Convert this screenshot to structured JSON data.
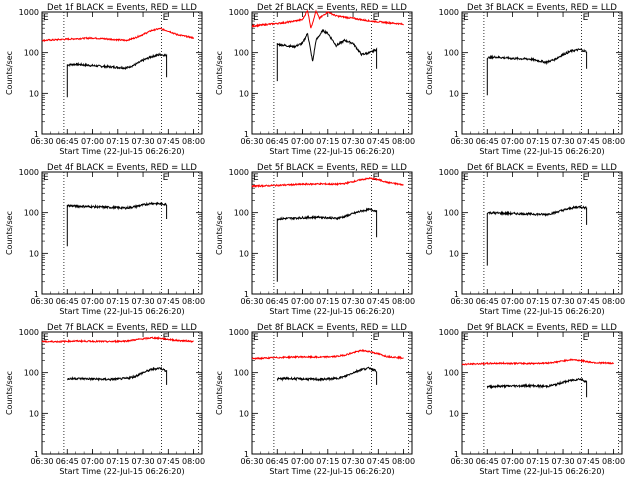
{
  "page": {
    "ylabel": "Counts/sec",
    "xlabel": "Start Time (22-Jul-15 06:26:20)",
    "xticks": [
      "06:30",
      "06:45",
      "07:00",
      "07:15",
      "07:30",
      "07:45",
      "08:00"
    ],
    "yticks": [
      "1",
      "10",
      "100",
      "1000"
    ],
    "marker_left": "E",
    "marker_right": "E"
  },
  "colors": {
    "events": "#000000",
    "lld": "#ff0000",
    "axis": "#000000"
  },
  "chart_data": [
    {
      "type": "line",
      "title": "Det 1f BLACK = Events, RED = LLD",
      "xlabel": "Start Time (22-Jul-15 06:26:20)",
      "ylabel": "Counts/sec",
      "ylog": true,
      "ylim": [
        1,
        1000
      ],
      "xlim": [
        "06:30",
        "08:05"
      ],
      "series": [
        {
          "name": "Events",
          "color": "#000000",
          "x": [
            "06:45",
            "06:50",
            "07:00",
            "07:10",
            "07:20",
            "07:25",
            "07:30",
            "07:35",
            "07:40",
            "07:44"
          ],
          "y": [
            50,
            52,
            48,
            45,
            42,
            50,
            65,
            80,
            90,
            85
          ],
          "start_y": 8,
          "end_y": 25
        },
        {
          "name": "LLD",
          "color": "#ff0000",
          "x": [
            "06:30",
            "06:40",
            "06:50",
            "07:00",
            "07:10",
            "07:20",
            "07:25",
            "07:30",
            "07:35",
            "07:40",
            "07:45",
            "07:50",
            "08:00"
          ],
          "y": [
            200,
            210,
            220,
            230,
            215,
            200,
            230,
            280,
            350,
            390,
            340,
            280,
            230
          ]
        }
      ]
    },
    {
      "type": "line",
      "title": "Det 2f BLACK = Events, RED = LLD",
      "xlabel": "Start Time (22-Jul-15 06:26:20)",
      "ylabel": "Counts/sec",
      "ylog": true,
      "ylim": [
        1,
        1000
      ],
      "xlim": [
        "06:30",
        "08:05"
      ],
      "series": [
        {
          "name": "Events",
          "color": "#000000",
          "x": [
            "06:45",
            "06:50",
            "06:55",
            "07:00",
            "07:03",
            "07:06",
            "07:08",
            "07:12",
            "07:15",
            "07:20",
            "07:25",
            "07:30",
            "07:35",
            "07:40",
            "07:44"
          ],
          "y": [
            160,
            150,
            140,
            170,
            300,
            60,
            200,
            350,
            300,
            150,
            200,
            170,
            90,
            100,
            120
          ],
          "start_y": 20,
          "end_y": 40
        },
        {
          "name": "LLD",
          "color": "#ff0000",
          "x": [
            "06:30",
            "06:40",
            "06:50",
            "07:00",
            "07:03",
            "07:05",
            "07:08",
            "07:10",
            "07:15",
            "07:20",
            "07:30",
            "07:40",
            "07:50",
            "08:00"
          ],
          "y": [
            450,
            500,
            550,
            650,
            1100,
            400,
            1050,
            700,
            1000,
            800,
            700,
            600,
            550,
            500
          ]
        }
      ]
    },
    {
      "type": "line",
      "title": "Det 3f BLACK = Events, RED = LLD",
      "xlabel": "Start Time (22-Jul-15 06:26:20)",
      "ylabel": "Counts/sec",
      "ylog": true,
      "ylim": [
        1,
        1000
      ],
      "xlim": [
        "06:30",
        "08:05"
      ],
      "series": [
        {
          "name": "Events",
          "color": "#000000",
          "x": [
            "06:45",
            "06:50",
            "07:00",
            "07:10",
            "07:20",
            "07:25",
            "07:30",
            "07:35",
            "07:40",
            "07:44"
          ],
          "y": [
            75,
            78,
            72,
            70,
            58,
            68,
            90,
            110,
            120,
            105
          ],
          "start_y": 9,
          "end_y": 40
        }
      ]
    },
    {
      "type": "line",
      "title": "Det 4f BLACK = Events, RED = LLD",
      "xlabel": "Start Time (22-Jul-15 06:26:20)",
      "ylabel": "Counts/sec",
      "ylog": true,
      "ylim": [
        1,
        1000
      ],
      "xlim": [
        "06:30",
        "08:05"
      ],
      "series": [
        {
          "name": "Events",
          "color": "#000000",
          "x": [
            "06:45",
            "06:50",
            "07:00",
            "07:10",
            "07:20",
            "07:25",
            "07:30",
            "07:35",
            "07:40",
            "07:44"
          ],
          "y": [
            150,
            145,
            140,
            135,
            130,
            140,
            155,
            170,
            165,
            160
          ],
          "start_y": 15,
          "end_y": 70
        }
      ]
    },
    {
      "type": "line",
      "title": "Det 5f BLACK = Events, RED = LLD",
      "xlabel": "Start Time (22-Jul-15 06:26:20)",
      "ylabel": "Counts/sec",
      "ylog": true,
      "ylim": [
        1,
        1000
      ],
      "xlim": [
        "06:30",
        "08:05"
      ],
      "series": [
        {
          "name": "Events",
          "color": "#000000",
          "x": [
            "06:45",
            "06:50",
            "07:00",
            "07:10",
            "07:20",
            "07:25",
            "07:30",
            "07:35",
            "07:40",
            "07:44"
          ],
          "y": [
            70,
            72,
            75,
            78,
            72,
            80,
            95,
            110,
            120,
            110
          ],
          "start_y": 2,
          "end_y": 25
        },
        {
          "name": "LLD",
          "color": "#ff0000",
          "x": [
            "06:30",
            "06:40",
            "06:50",
            "07:00",
            "07:10",
            "07:20",
            "07:25",
            "07:30",
            "07:35",
            "07:40",
            "07:45",
            "07:50",
            "08:00"
          ],
          "y": [
            450,
            460,
            480,
            500,
            510,
            500,
            520,
            580,
            650,
            700,
            650,
            560,
            480
          ]
        }
      ]
    },
    {
      "type": "line",
      "title": "Det 6f BLACK = Events, RED = LLD",
      "xlabel": "Start Time (22-Jul-15 06:26:20)",
      "ylabel": "Counts/sec",
      "ylog": true,
      "ylim": [
        1,
        1000
      ],
      "xlim": [
        "06:30",
        "08:05"
      ],
      "series": [
        {
          "name": "Events",
          "color": "#000000",
          "x": [
            "06:45",
            "06:50",
            "07:00",
            "07:10",
            "07:20",
            "07:25",
            "07:30",
            "07:35",
            "07:40",
            "07:44"
          ],
          "y": [
            100,
            98,
            95,
            93,
            90,
            100,
            115,
            130,
            140,
            130
          ],
          "start_y": 5,
          "end_y": 50
        }
      ]
    },
    {
      "type": "line",
      "title": "Det 7f BLACK = Events, RED = LLD",
      "xlabel": "Start Time (22-Jul-15 06:26:20)",
      "ylabel": "Counts/sec",
      "ylog": true,
      "ylim": [
        1,
        1000
      ],
      "xlim": [
        "06:30",
        "08:05"
      ],
      "series": [
        {
          "name": "Events",
          "color": "#000000",
          "x": [
            "06:45",
            "06:50",
            "07:00",
            "07:10",
            "07:20",
            "07:25",
            "07:30",
            "07:35",
            "07:40",
            "07:44"
          ],
          "y": [
            70,
            72,
            70,
            68,
            72,
            80,
            100,
            120,
            130,
            110
          ],
          "start_y": null,
          "end_y": 50
        },
        {
          "name": "LLD",
          "color": "#ff0000",
          "x": [
            "06:30",
            "06:40",
            "06:50",
            "07:00",
            "07:10",
            "07:20",
            "07:25",
            "07:30",
            "07:35",
            "07:40",
            "07:45",
            "07:50",
            "08:00"
          ],
          "y": [
            580,
            580,
            600,
            590,
            580,
            600,
            640,
            680,
            720,
            700,
            660,
            620,
            590
          ]
        }
      ]
    },
    {
      "type": "line",
      "title": "Det 8f BLACK = Events, RED = LLD",
      "xlabel": "Start Time (22-Jul-15 06:26:20)",
      "ylabel": "Counts/sec",
      "ylog": true,
      "ylim": [
        1,
        1000
      ],
      "xlim": [
        "06:30",
        "08:05"
      ],
      "series": [
        {
          "name": "Events",
          "color": "#000000",
          "x": [
            "06:45",
            "06:50",
            "07:00",
            "07:10",
            "07:20",
            "07:25",
            "07:30",
            "07:35",
            "07:40",
            "07:44"
          ],
          "y": [
            70,
            72,
            70,
            68,
            72,
            80,
            100,
            120,
            130,
            110
          ],
          "start_y": null,
          "end_y": 50
        },
        {
          "name": "LLD",
          "color": "#ff0000",
          "x": [
            "06:30",
            "06:40",
            "06:50",
            "07:00",
            "07:10",
            "07:20",
            "07:25",
            "07:30",
            "07:35",
            "07:40",
            "07:45",
            "07:50",
            "08:00"
          ],
          "y": [
            220,
            230,
            240,
            245,
            240,
            250,
            270,
            310,
            350,
            330,
            290,
            250,
            230
          ]
        }
      ]
    },
    {
      "type": "line",
      "title": "Det 9f BLACK = Events, RED = LLD",
      "xlabel": "Start Time (22-Jul-15 06:26:20)",
      "ylabel": "Counts/sec",
      "ylog": true,
      "ylim": [
        1,
        1000
      ],
      "xlim": [
        "06:30",
        "08:05"
      ],
      "series": [
        {
          "name": "Events",
          "color": "#000000",
          "x": [
            "06:45",
            "06:50",
            "07:00",
            "07:10",
            "07:20",
            "07:25",
            "07:30",
            "07:35",
            "07:40",
            "07:44"
          ],
          "y": [
            45,
            46,
            47,
            48,
            46,
            50,
            58,
            65,
            70,
            60
          ],
          "start_y": null,
          "end_y": 25
        },
        {
          "name": "LLD",
          "color": "#ff0000",
          "x": [
            "06:30",
            "06:40",
            "06:50",
            "07:00",
            "07:10",
            "07:20",
            "07:25",
            "07:30",
            "07:35",
            "07:40",
            "07:45",
            "07:50",
            "08:00"
          ],
          "y": [
            160,
            165,
            170,
            170,
            168,
            172,
            180,
            195,
            210,
            200,
            185,
            175,
            170
          ]
        }
      ]
    }
  ]
}
